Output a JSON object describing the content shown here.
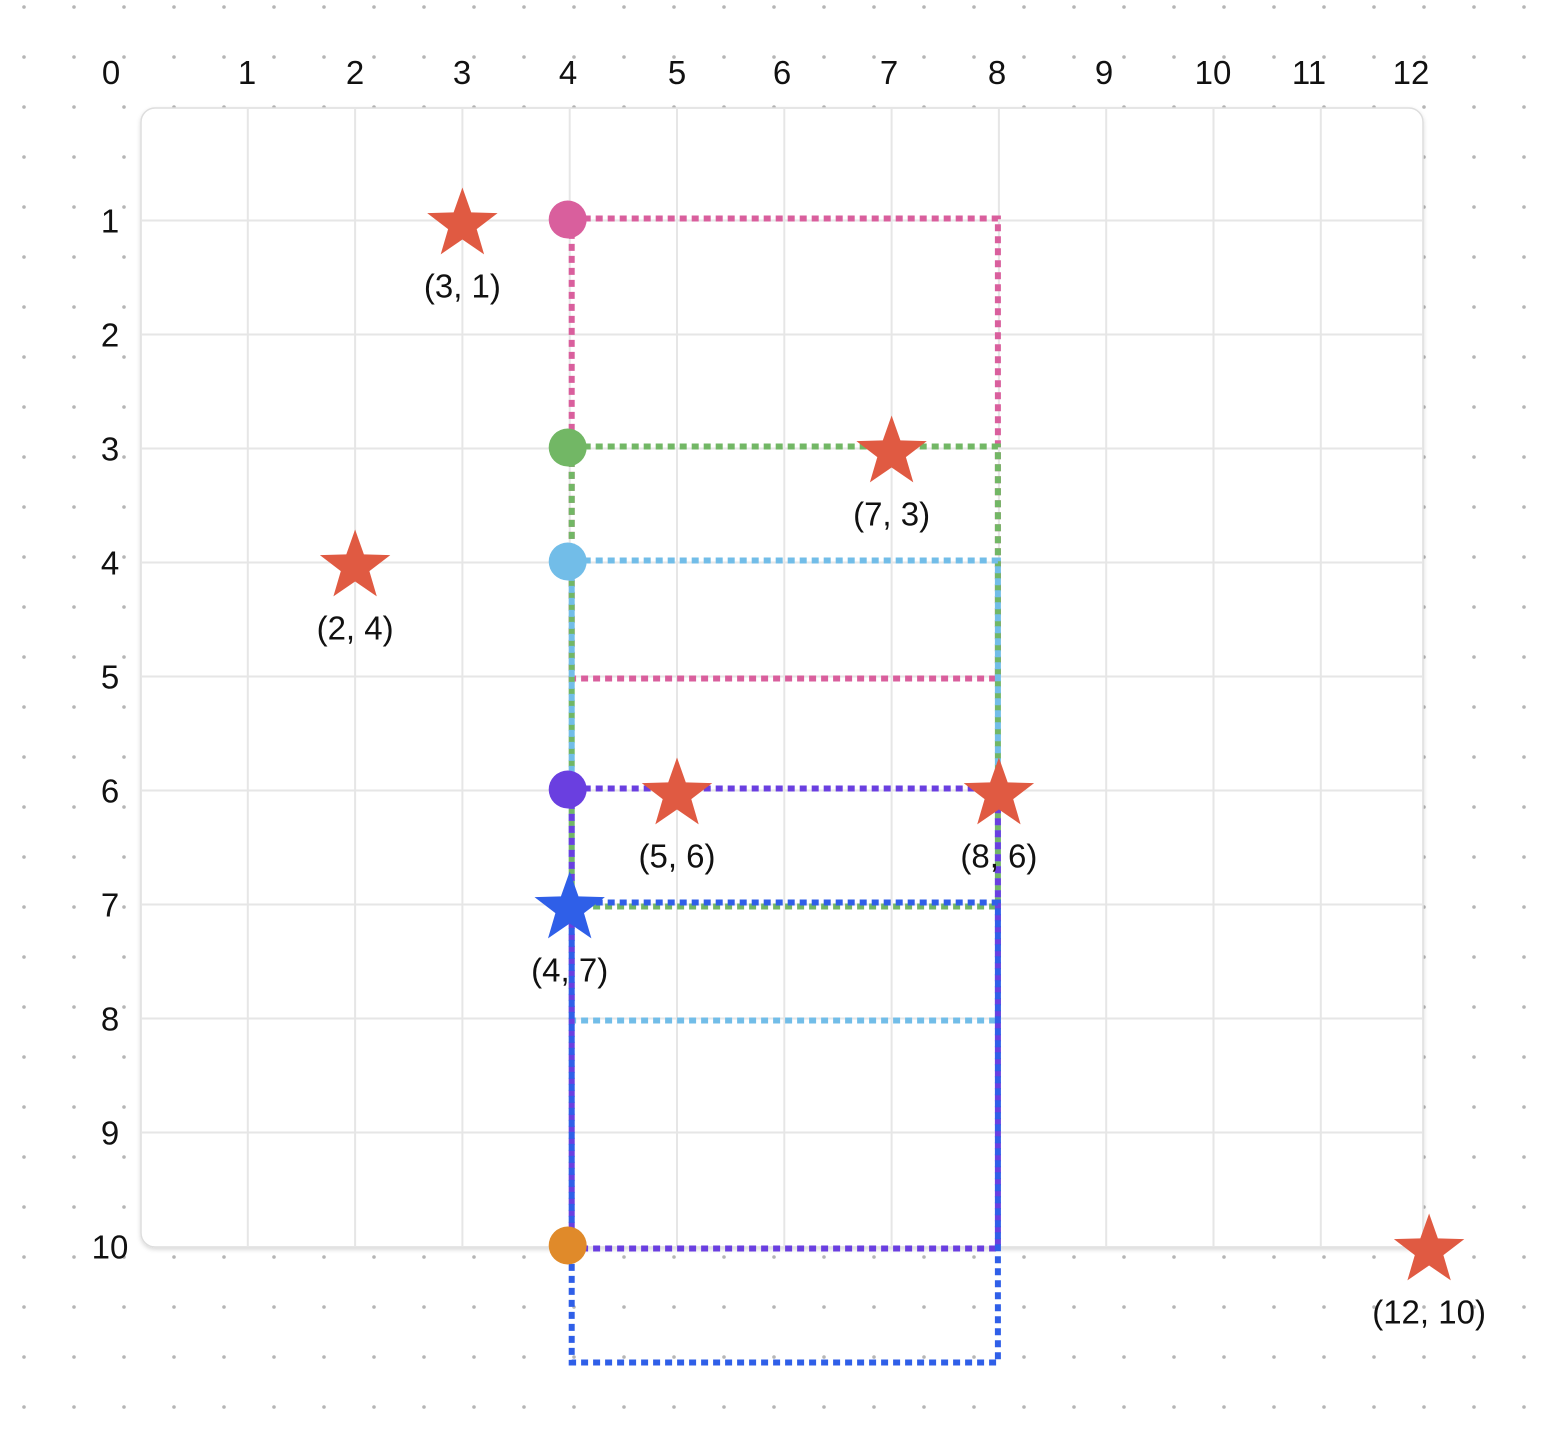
{
  "chart_data": {
    "type": "scatter",
    "title": "",
    "xlabel": "",
    "ylabel": "",
    "xlim": [
      0,
      12
    ],
    "ylim": [
      0,
      10
    ],
    "x_ticks": [
      "0",
      "1",
      "2",
      "3",
      "4",
      "5",
      "6",
      "7",
      "8",
      "9",
      "10",
      "11",
      "12"
    ],
    "y_ticks": [
      "1",
      "2",
      "3",
      "4",
      "5",
      "6",
      "7",
      "8",
      "9",
      "10"
    ],
    "stars": [
      {
        "x": 3,
        "y": 1,
        "label": "(3, 1)",
        "color": "#e05a42"
      },
      {
        "x": 7,
        "y": 3,
        "label": "(7, 3)",
        "color": "#e05a42"
      },
      {
        "x": 2,
        "y": 4,
        "label": "(2, 4)",
        "color": "#e05a42"
      },
      {
        "x": 5,
        "y": 6,
        "label": "(5, 6)",
        "color": "#e05a42"
      },
      {
        "x": 8,
        "y": 6,
        "label": "(8, 6)",
        "color": "#e05a42"
      },
      {
        "x": 12,
        "y": 10,
        "label": "(12, 10)",
        "color": "#e05a42"
      },
      {
        "x": 4,
        "y": 7,
        "label": "(4, 7)",
        "color": "#2f5fe8"
      }
    ],
    "dots": [
      {
        "x": 4,
        "y": 1,
        "color": "#d95f9d"
      },
      {
        "x": 4,
        "y": 3,
        "color": "#72b765"
      },
      {
        "x": 4,
        "y": 4,
        "color": "#72bde8"
      },
      {
        "x": 4,
        "y": 6,
        "color": "#6a3fe0"
      },
      {
        "x": 4,
        "y": 10,
        "color": "#e08a2a"
      }
    ],
    "rectangles": [
      {
        "name": "pink",
        "color": "#d95f9d",
        "x1": 4,
        "y1": 1,
        "x2": 8,
        "y2": 5
      },
      {
        "name": "green",
        "color": "#72b765",
        "x1": 4,
        "y1": 3,
        "x2": 8,
        "y2": 7
      },
      {
        "name": "light-blue",
        "color": "#72bde8",
        "x1": 4,
        "y1": 4,
        "x2": 8,
        "y2": 8
      },
      {
        "name": "purple",
        "color": "#6a3fe0",
        "x1": 4,
        "y1": 6,
        "x2": 8,
        "y2": 10
      },
      {
        "name": "blue",
        "color": "#2f5fe8",
        "x1": 4,
        "y1": 7,
        "x2": 8,
        "y2": 11
      }
    ]
  }
}
